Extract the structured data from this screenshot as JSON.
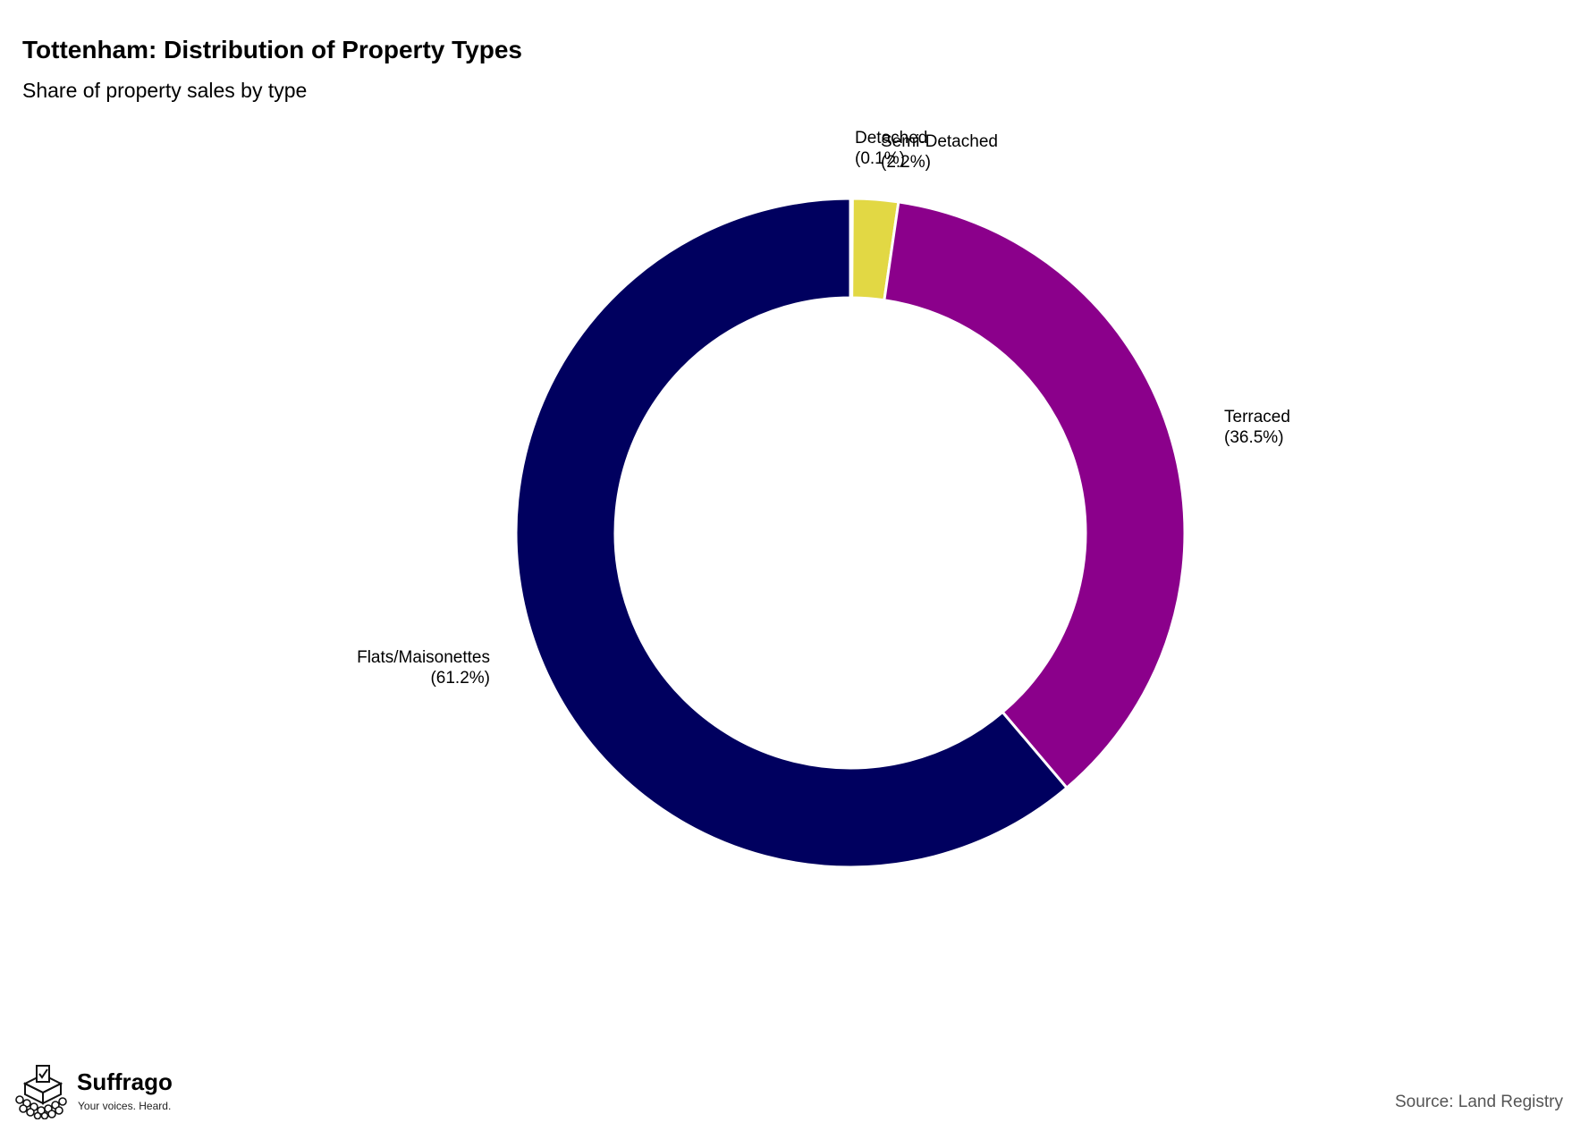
{
  "header": {
    "title": "Tottenham: Distribution of Property Types",
    "subtitle": "Share of property sales by type"
  },
  "brand": {
    "name": "Suffrago",
    "tagline": "Your voices. Heard.",
    "logo_icon": "ballot-box-crowd-icon"
  },
  "source": "Source: Land Registry",
  "chart_data": {
    "type": "pie",
    "variant": "donut",
    "title": "Tottenham: Distribution of Property Types",
    "subtitle": "Share of property sales by type",
    "unit": "%",
    "slices": [
      {
        "name": "Detached",
        "value": 0.1,
        "label_value": "(0.1%)",
        "color": "#440154"
      },
      {
        "name": "Semi-Detached",
        "value": 2.2,
        "label_value": "(2.2%)",
        "color": "#e2d844"
      },
      {
        "name": "Terraced",
        "value": 36.5,
        "label_value": "(36.5%)",
        "color": "#8b008b"
      },
      {
        "name": "Flats/Maisonettes",
        "value": 61.2,
        "label_value": "(61.2%)",
        "color": "#00005f"
      }
    ],
    "start_angle": "12 o'clock",
    "direction": "clockwise",
    "legend": "none",
    "labels": "outside slices"
  }
}
